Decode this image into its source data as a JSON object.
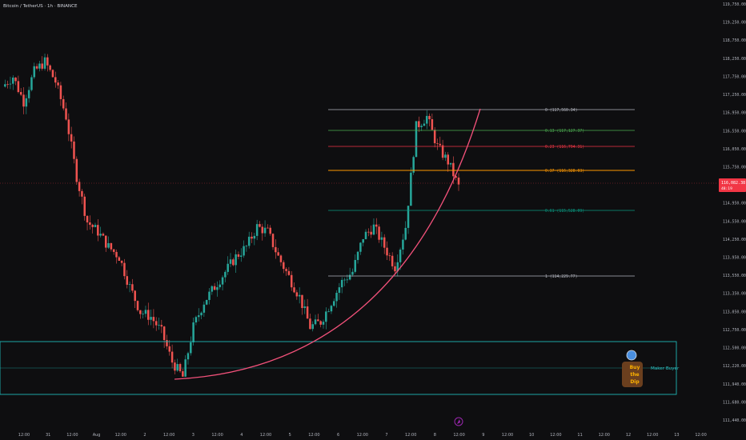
{
  "header": {
    "title": "Bitcoin / TetherUS · 1h · BINANCE"
  },
  "colors": {
    "background": "#0e0e10",
    "up": "#26a69a",
    "down": "#ef5350",
    "curve": "#f2517a",
    "zone": "#1fb5b5",
    "price_tag": "#f23645",
    "fib_0": "#b2b5be",
    "fib_013": "#4caf50",
    "fib_023": "#f23645",
    "fib_037": "#ff9800",
    "fib_061": "#089981",
    "fib_1": "#b2b5be"
  },
  "price_axis": {
    "labels": [
      "119,750.00",
      "119,250.00",
      "118,750.00",
      "118,250.00",
      "117,750.00",
      "117,250.00",
      "116,950.00",
      "116,550.00",
      "116,050.00",
      "115,750.00",
      "115,250.00",
      "114,950.00",
      "114,550.00",
      "114,250.00",
      "113,950.00",
      "113,550.00",
      "113,350.00",
      "113,050.00",
      "112,750.00",
      "112,500.00",
      "112,220.00",
      "111,940.00",
      "111,680.00",
      "111,440.00"
    ],
    "current_price": "116,082.38",
    "countdown": "48:19"
  },
  "time_axis": {
    "labels": [
      "12:00",
      "31",
      "12:00",
      "Aug",
      "12:00",
      "2",
      "12:00",
      "3",
      "12:00",
      "4",
      "12:00",
      "5",
      "12:00",
      "6",
      "12:00",
      "7",
      "12:00",
      "8",
      "12:00",
      "9",
      "12:00",
      "10",
      "12:00",
      "11",
      "12:00",
      "12",
      "12:00",
      "13",
      "12:00"
    ]
  },
  "fib_levels": [
    {
      "ratio": "0",
      "price": "117,560.34"
    },
    {
      "ratio": "0.13",
      "price": "117,127.37"
    },
    {
      "ratio": "0.23",
      "price": "116,794.31"
    },
    {
      "ratio": "0.37",
      "price": "116,328.03"
    },
    {
      "ratio": "0.61",
      "price": "115,528.09"
    },
    {
      "ratio": "1",
      "price": "114,229.77"
    }
  ],
  "zone_label": "Maker Buyer",
  "badge": {
    "line1": "Buy",
    "line2": "the",
    "line3": "Dip"
  },
  "chart_data": {
    "type": "candlestick",
    "title": "Bitcoin / TetherUS · 1h · BINANCE",
    "x_start": "Jul 30 12:00",
    "x_end": "Aug 13 12:00",
    "ylim": [
      111440,
      119750
    ],
    "grid": false,
    "series": [
      {
        "name": "BTCUSDT 1h close (approx, 4h samples)",
        "values": [
          118100,
          118300,
          117800,
          118400,
          118600,
          118200,
          117500,
          116300,
          115400,
          115200,
          114900,
          114700,
          114100,
          113600,
          113500,
          113200,
          112600,
          112300,
          113300,
          113800,
          114100,
          114400,
          114700,
          114900,
          115300,
          115200,
          114700,
          114300,
          113900,
          113300,
          113400,
          113800,
          114200,
          114400,
          115100,
          115300,
          114900,
          114500,
          115300,
          117300,
          117500,
          116900,
          116600,
          116100
        ]
      }
    ],
    "fibonacci_retracement": [
      {
        "level": 0,
        "price": 117560.34
      },
      {
        "level": 0.13,
        "price": 117127.37
      },
      {
        "level": 0.23,
        "price": 116794.31
      },
      {
        "level": 0.37,
        "price": 116328.03
      },
      {
        "level": 0.61,
        "price": 115528.09
      },
      {
        "level": 1,
        "price": 114229.77
      }
    ],
    "last_price": 116082.38
  }
}
